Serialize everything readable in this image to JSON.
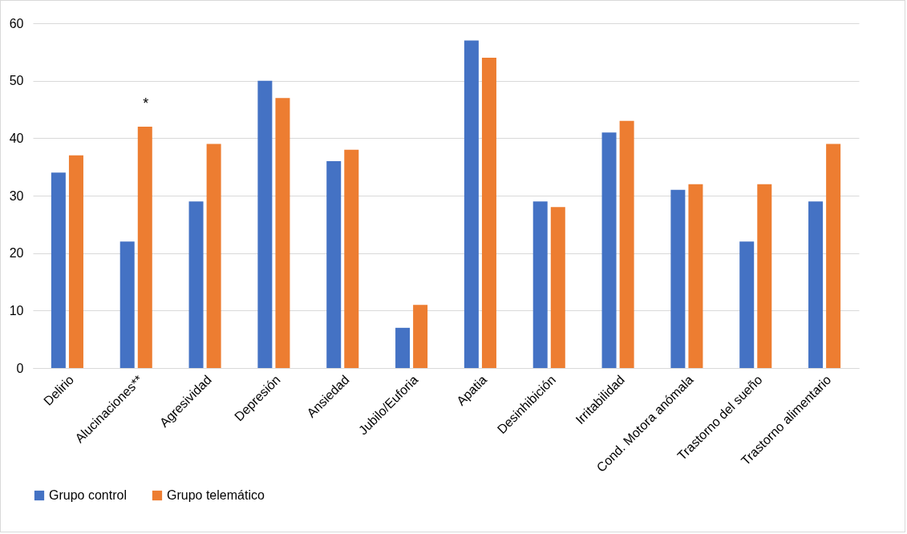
{
  "chart_data": {
    "type": "bar",
    "categories": [
      "Delirio",
      "Alucinaciones**",
      "Agresividad",
      "Depresión",
      "Ansiedad",
      "Jubilo/Euforia",
      "Apatia",
      "Desinhibición",
      "Irritabilidad",
      "Cond. Motora anómala",
      "Trastorno del sueño",
      "Trastorno alimentario"
    ],
    "series": [
      {
        "name": "Grupo control",
        "color": "#4472c4",
        "values": [
          34,
          22,
          29,
          50,
          36,
          7,
          57,
          29,
          41,
          31,
          22,
          29
        ]
      },
      {
        "name": "Grupo telemático",
        "color": "#ed7d31",
        "values": [
          37,
          42,
          39,
          47,
          38,
          11,
          54,
          28,
          43,
          32,
          32,
          39
        ]
      }
    ],
    "ylim": [
      0,
      60
    ],
    "yticks": [
      0,
      10,
      20,
      30,
      40,
      50,
      60
    ],
    "grid": "y",
    "legend": "bottom",
    "annotations": [
      {
        "text": "*",
        "x": "Alucinaciones**",
        "y": 42
      }
    ]
  }
}
